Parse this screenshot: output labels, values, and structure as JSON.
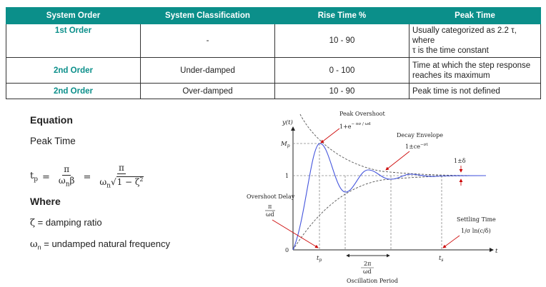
{
  "table": {
    "headers": [
      "System Order",
      "System Classification",
      "Rise Time %",
      "Peak Time"
    ],
    "rows": [
      {
        "order": "1st Order",
        "classification": "-",
        "rise": "10 - 90",
        "peak_line1": "Usually categorized as 2.2 τ, where",
        "peak_line2": "τ is the time constant"
      },
      {
        "order": "2nd Order",
        "classification": "Under-damped",
        "rise": "0 - 100",
        "peak_line1": "Time at which the step response",
        "peak_line2": "reaches its maximum"
      },
      {
        "order": "2nd Order",
        "classification": "Over-damped",
        "rise": "10 - 90",
        "peak_line1": "Peak time is not defined",
        "peak_line2": ""
      }
    ]
  },
  "equation": {
    "heading": "Equation",
    "subheading": "Peak Time",
    "lhs": "t",
    "lhs_sub": "p",
    "frac1_num": "π",
    "frac1_den": "ω",
    "frac1_den_sub": "n",
    "frac1_den_tail": "β",
    "frac2_num": "π",
    "frac2_den": "ω",
    "frac2_den_sub": "n",
    "frac2_den_root": "1 − ζ",
    "frac2_den_exp": "2"
  },
  "where": {
    "heading": "Where",
    "def1_symbol": "ζ",
    "def1_text": " = damping ratio",
    "def2_symbol": "ω",
    "def2_sub": "n",
    "def2_text": " = undamped natural frequency"
  },
  "diagram": {
    "y_axis": "y(t)",
    "t_axis": "t",
    "mp": "M",
    "mp_sub": "p",
    "one": "1",
    "zero": "0",
    "peak_overshoot": "Peak Overshoot",
    "peak_overshoot_expr": "1+e",
    "peak_overshoot_exp": "− πσ / ωd",
    "decay_envelope": "Decay Envelope",
    "decay_expr": "1±ce",
    "decay_exp": "−σt",
    "delta": "1±δ",
    "overshoot_delay": "Overshoot Delay",
    "overshoot_delay_num": "π",
    "overshoot_delay_den": "ωd",
    "settling_time": "Settling Time",
    "settling_expr": "1/σ  ln(c/δ)",
    "tp": "t",
    "tp_sub": "p",
    "ts": "t",
    "ts_sub": "s",
    "period_num": "2π",
    "period_den": "ωd",
    "oscillation_period": "Oscillation Period"
  }
}
